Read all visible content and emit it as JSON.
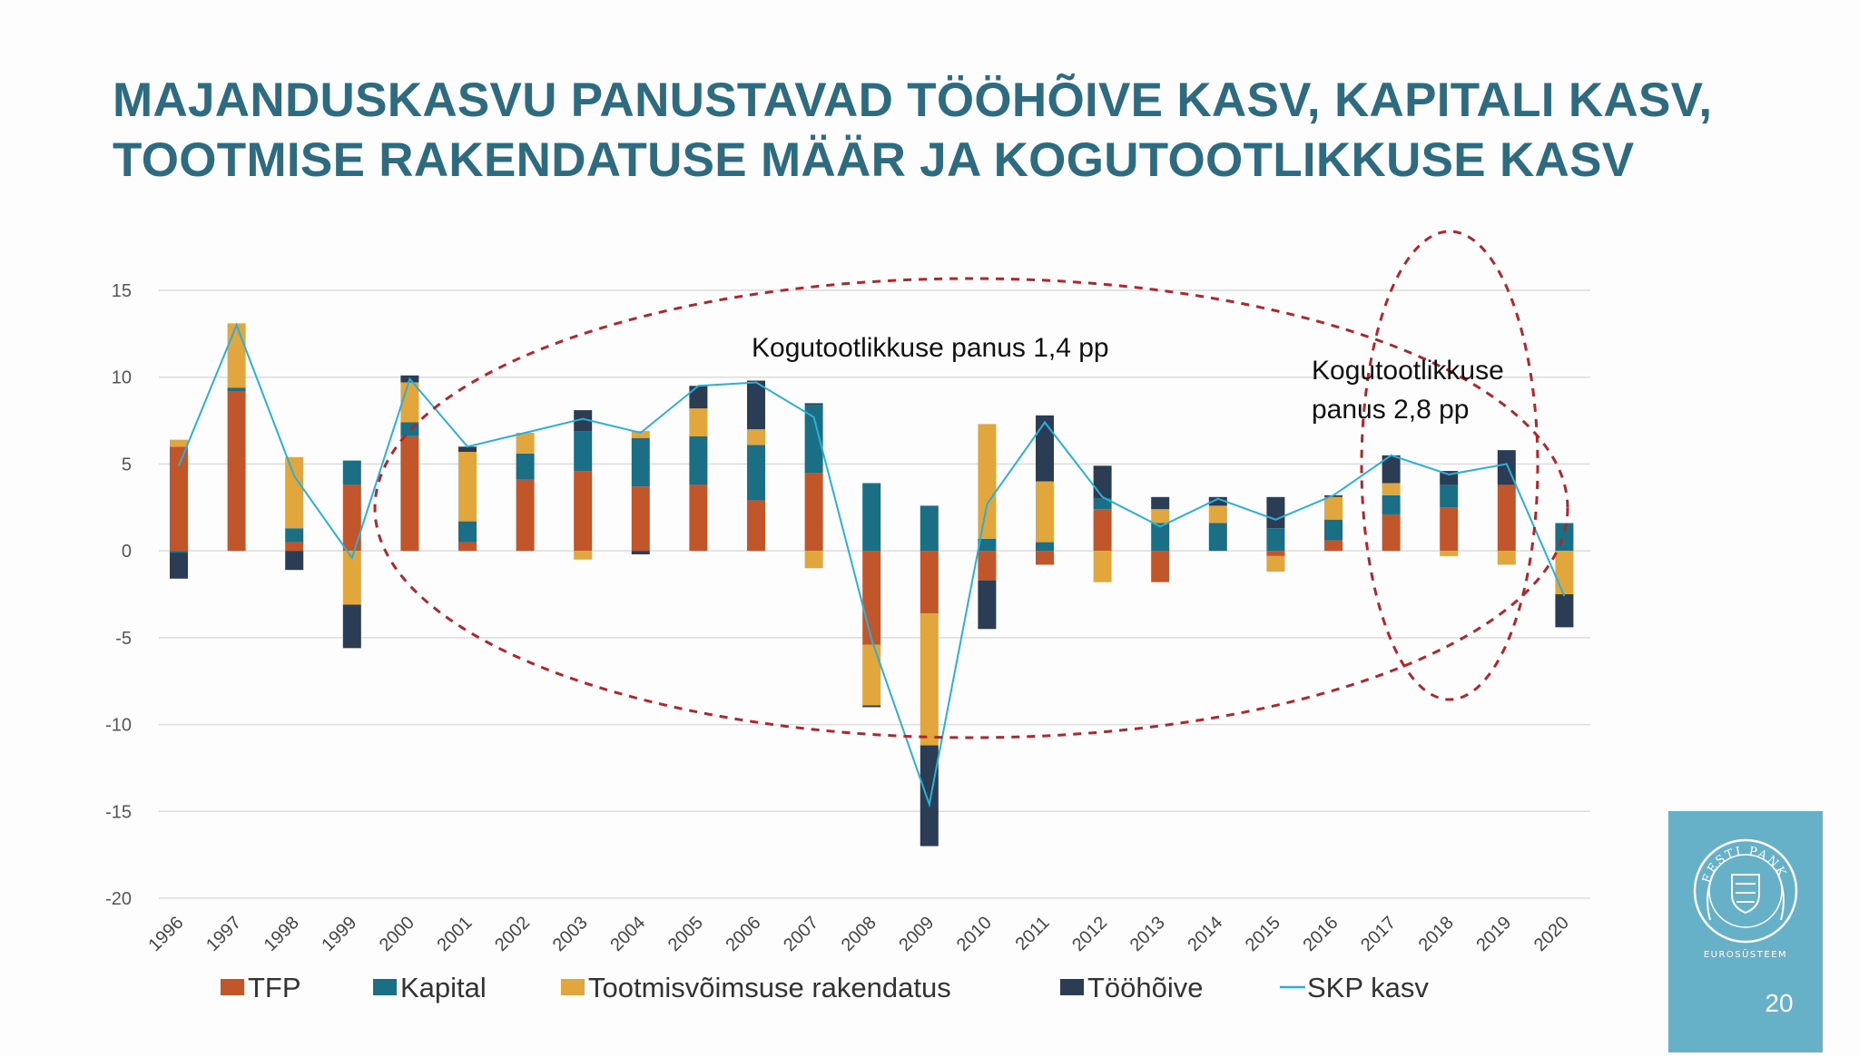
{
  "slide": {
    "title_line1": "MAJANDUSKASVU PANUSTAVAD TÖÖHÕIVE KASV, KAPITALI KASV,",
    "title_line2": "TOOTMISE RAKENDATUSE MÄÄR JA KOGUTOOTLIKKUSE KASV",
    "page_number": "20",
    "logo_text": "EESTI PANK",
    "logo_subtext": "EUROSÜSTEEM"
  },
  "annotations": {
    "oval1": {
      "text": "Kogutootlikkuse panus 1,4 pp"
    },
    "oval2": {
      "line1": "Kogutootlikkuse",
      "line2": "panus 2,8 pp"
    }
  },
  "colors": {
    "tfp": "#c0562a",
    "kapital": "#1a6f85",
    "rakendatus": "#e1a63c",
    "toohoive": "#2b3d55",
    "skp": "#2ab0d8",
    "oval": "#b0262c",
    "title": "#2d6b80",
    "brand": "#67b1c8"
  },
  "chart_data": {
    "type": "bar",
    "stacked": true,
    "categories": [
      "1996",
      "1997",
      "1998",
      "1999",
      "2000",
      "2001",
      "2002",
      "2003",
      "2004",
      "2005",
      "2006",
      "2007",
      "2008",
      "2009",
      "2010",
      "2011",
      "2012",
      "2013",
      "2014",
      "2015",
      "2016",
      "2017",
      "2018",
      "2019",
      "2020"
    ],
    "ylim": [
      -20,
      15
    ],
    "yticks": [
      15,
      10,
      5,
      0,
      -5,
      -10,
      -15,
      -20
    ],
    "grid": true,
    "legend_position": "bottom",
    "series": [
      {
        "name": "TFP",
        "kind": "bar",
        "values": [
          6.0,
          9.2,
          0.5,
          3.8,
          6.6,
          0.5,
          4.1,
          4.6,
          3.7,
          3.8,
          2.9,
          4.5,
          -5.4,
          -3.6,
          -1.7,
          -0.8,
          2.4,
          -1.8,
          0.0,
          -0.3,
          0.6,
          2.1,
          2.5,
          3.8,
          0.0
        ]
      },
      {
        "name": "Kapital",
        "kind": "bar",
        "values": [
          -0.1,
          0.2,
          0.8,
          1.4,
          0.8,
          1.2,
          1.5,
          2.3,
          2.8,
          2.8,
          3.2,
          3.9,
          3.9,
          2.6,
          0.7,
          0.5,
          0.6,
          1.6,
          1.6,
          1.3,
          1.2,
          1.1,
          1.3,
          0.0,
          1.6
        ]
      },
      {
        "name": "Tootmisvõimsuse rakendatus",
        "kind": "bar",
        "values": [
          0.4,
          3.7,
          4.1,
          -3.1,
          2.3,
          4.0,
          1.2,
          -0.5,
          0.4,
          1.6,
          0.9,
          -1.0,
          -3.5,
          -7.6,
          6.6,
          3.5,
          -1.8,
          0.8,
          1.0,
          -0.9,
          1.3,
          0.7,
          -0.3,
          -0.8,
          -2.5
        ]
      },
      {
        "name": "Tööhõive",
        "kind": "bar",
        "values": [
          -1.5,
          0.0,
          -1.1,
          -2.5,
          0.4,
          0.3,
          0.0,
          1.2,
          -0.2,
          1.3,
          2.8,
          0.1,
          -0.1,
          -5.8,
          -2.8,
          3.8,
          1.9,
          0.7,
          0.5,
          1.8,
          0.1,
          1.6,
          0.8,
          2.0,
          -1.9
        ]
      },
      {
        "name": "SKP kasv",
        "kind": "line",
        "values": [
          4.9,
          13.0,
          4.3,
          -0.4,
          9.9,
          6.0,
          6.8,
          7.6,
          6.8,
          9.5,
          9.7,
          7.7,
          -5.1,
          -14.6,
          2.7,
          7.4,
          3.1,
          1.4,
          3.0,
          1.8,
          3.2,
          5.5,
          4.4,
          5.0,
          -2.6
        ]
      }
    ]
  }
}
